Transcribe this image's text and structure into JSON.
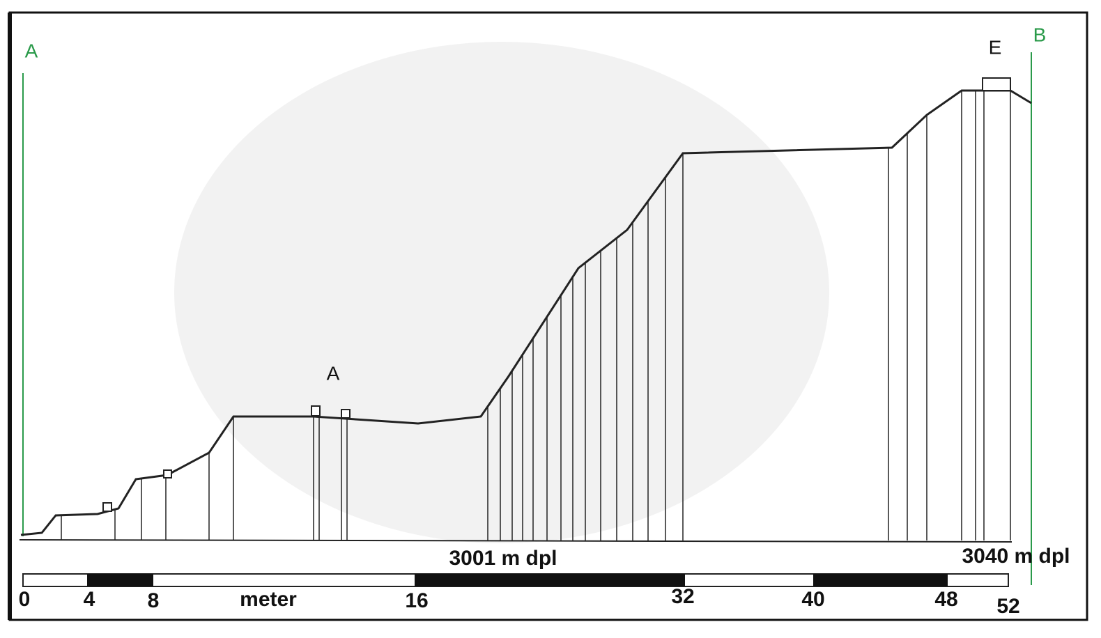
{
  "profile": {
    "end_labels": [
      "A",
      "B"
    ],
    "point_labels": [
      "A",
      "E"
    ],
    "elevations": [
      "3001 m dpl",
      "3040 m dpl"
    ]
  },
  "scale": {
    "unit": "meter",
    "ticks": [
      "0",
      "4",
      "8",
      "16",
      "32",
      "40",
      "48",
      "52"
    ]
  }
}
